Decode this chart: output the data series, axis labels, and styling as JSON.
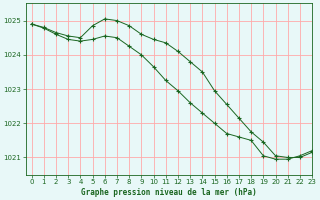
{
  "title": "Graphe pression niveau de la mer (hPa)",
  "bg_color": "#e8f8f8",
  "grid_color": "#ffaaaa",
  "line_color": "#1a6620",
  "marker_color": "#1a6620",
  "xlim": [
    -0.5,
    23
  ],
  "ylim": [
    1020.5,
    1025.5
  ],
  "yticks": [
    1021,
    1022,
    1023,
    1024,
    1025
  ],
  "xticks": [
    0,
    1,
    2,
    3,
    4,
    5,
    6,
    7,
    8,
    9,
    10,
    11,
    12,
    13,
    14,
    15,
    16,
    17,
    18,
    19,
    20,
    21,
    22,
    23
  ],
  "series1_x": [
    0,
    1,
    2,
    3,
    4,
    5,
    6,
    7,
    8,
    9,
    10,
    11,
    12,
    13,
    14,
    15,
    16,
    17,
    18,
    19,
    20,
    21,
    22,
    23
  ],
  "series1_y": [
    1024.9,
    1024.8,
    1024.65,
    1024.55,
    1024.5,
    1024.85,
    1025.05,
    1025.0,
    1024.85,
    1024.6,
    1024.45,
    1024.35,
    1024.1,
    1023.8,
    1023.5,
    1022.95,
    1022.55,
    1022.15,
    1021.75,
    1021.45,
    1021.05,
    1021.0,
    1021.0,
    1021.15
  ],
  "series2_x": [
    0,
    1,
    2,
    3,
    4,
    5,
    6,
    7,
    8,
    9,
    10,
    11,
    12,
    13,
    14,
    15,
    16,
    17,
    18,
    19,
    20,
    21,
    22,
    23
  ],
  "series2_y": [
    1024.9,
    1024.78,
    1024.6,
    1024.45,
    1024.4,
    1024.45,
    1024.55,
    1024.5,
    1024.25,
    1024.0,
    1023.65,
    1023.25,
    1022.95,
    1022.6,
    1022.3,
    1022.0,
    1021.7,
    1021.6,
    1021.5,
    1021.05,
    1020.95,
    1020.95,
    1021.05,
    1021.2
  ]
}
